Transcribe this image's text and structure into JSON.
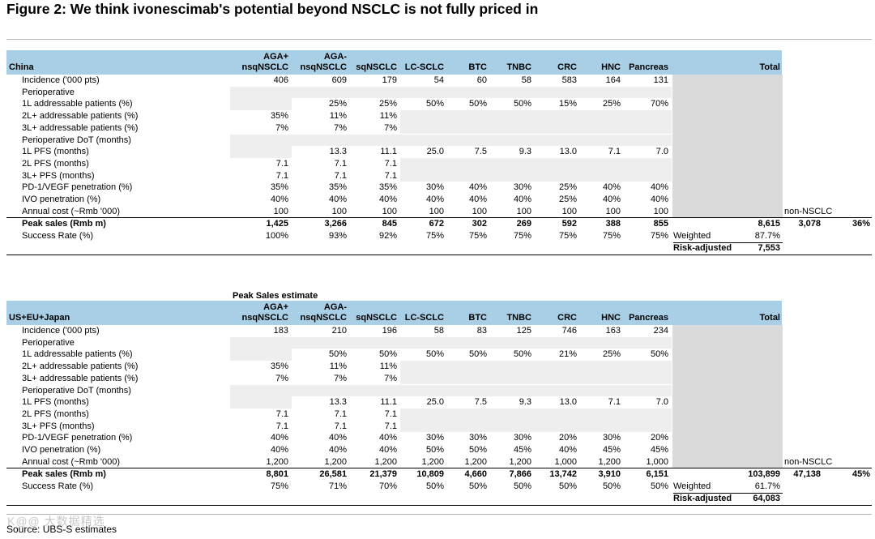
{
  "title": "Figure 2: We think ivonescimab's potential beyond NSCLC is not fully priced in",
  "columns": [
    "AGA+\nnsqNSCLC",
    "AGA-\nnsqNSCLC",
    "sqNSCLC",
    "LC-SCLC",
    "BTC",
    "TNBC",
    "CRC",
    "HNC",
    "Pancreas"
  ],
  "total_label": "Total",
  "peak_sales_estimate_label": "Peak Sales estimate",
  "sections": [
    {
      "region": "China",
      "rows": [
        {
          "label": "Incidence ('000 pts)",
          "values": [
            "406",
            "609",
            "179",
            "54",
            "60",
            "58",
            "583",
            "164",
            "131"
          ]
        },
        {
          "label": "Perioperative",
          "values": [
            "",
            "",
            "",
            "",
            "",
            "",
            "",
            "",
            ""
          ]
        },
        {
          "label": "1L addressable patients (%)",
          "values": [
            "",
            "25%",
            "25%",
            "50%",
            "50%",
            "50%",
            "15%",
            "25%",
            "70%"
          ]
        },
        {
          "label": "2L+ addressable patients (%)",
          "values": [
            "35%",
            "11%",
            "11%",
            "",
            "",
            "",
            "",
            "",
            ""
          ]
        },
        {
          "label": "3L+ addressable patients (%)",
          "values": [
            "7%",
            "7%",
            "7%",
            "",
            "",
            "",
            "",
            "",
            ""
          ]
        },
        {
          "label": "Perioperative DoT (months)",
          "values": [
            "",
            "",
            "",
            "",
            "",
            "",
            "",
            "",
            ""
          ]
        },
        {
          "label": "1L PFS (months)",
          "values": [
            "",
            "13.3",
            "11.1",
            "25.0",
            "7.5",
            "9.3",
            "13.0",
            "7.1",
            "7.0"
          ]
        },
        {
          "label": "2L PFS (months)",
          "values": [
            "7.1",
            "7.1",
            "7.1",
            "",
            "",
            "",
            "",
            "",
            ""
          ]
        },
        {
          "label": "3L+ PFS (months)",
          "values": [
            "7.1",
            "7.1",
            "7.1",
            "",
            "",
            "",
            "",
            "",
            ""
          ]
        },
        {
          "label": "PD-1/VEGF penetration (%)",
          "values": [
            "35%",
            "35%",
            "35%",
            "30%",
            "40%",
            "30%",
            "25%",
            "40%",
            "40%"
          ]
        },
        {
          "label": "IVO penetration (%)",
          "values": [
            "40%",
            "40%",
            "40%",
            "40%",
            "40%",
            "40%",
            "25%",
            "40%",
            "40%"
          ]
        },
        {
          "label": "Annual cost (~Rmb '000)",
          "values": [
            "100",
            "100",
            "100",
            "100",
            "100",
            "100",
            "100",
            "100",
            "100"
          ],
          "extra_label": "non-NSCLC"
        }
      ],
      "peak": {
        "label": "Peak sales (Rmb m)",
        "values": [
          "1,425",
          "3,266",
          "845",
          "672",
          "302",
          "269",
          "592",
          "388",
          "855"
        ],
        "total": "8,615",
        "non_nsclc": "3,078",
        "pct": "36%"
      },
      "success": {
        "label": "Success Rate (%)",
        "values": [
          "100%",
          "93%",
          "92%",
          "75%",
          "75%",
          "75%",
          "75%",
          "75%",
          "75%"
        ],
        "weighted_label": "Weighted",
        "weighted": "87.7%"
      },
      "risk": {
        "label": "Risk-adjusted",
        "value": "7,553"
      }
    },
    {
      "region": "US+EU+Japan",
      "rows": [
        {
          "label": "Incidence ('000 pts)",
          "values": [
            "183",
            "210",
            "196",
            "58",
            "83",
            "125",
            "746",
            "163",
            "234"
          ]
        },
        {
          "label": "Perioperative",
          "values": [
            "",
            "",
            "",
            "",
            "",
            "",
            "",
            "",
            ""
          ]
        },
        {
          "label": "1L addressable patients (%)",
          "values": [
            "",
            "50%",
            "50%",
            "50%",
            "50%",
            "50%",
            "21%",
            "25%",
            "50%"
          ]
        },
        {
          "label": "2L+ addressable patients (%)",
          "values": [
            "35%",
            "11%",
            "11%",
            "",
            "",
            "",
            "",
            "",
            ""
          ]
        },
        {
          "label": "3L+ addressable patients (%)",
          "values": [
            "7%",
            "7%",
            "7%",
            "",
            "",
            "",
            "",
            "",
            ""
          ]
        },
        {
          "label": "Perioperative DoT (months)",
          "values": [
            "",
            "",
            "",
            "",
            "",
            "",
            "",
            "",
            ""
          ]
        },
        {
          "label": "1L PFS (months)",
          "values": [
            "",
            "13.3",
            "11.1",
            "25.0",
            "7.5",
            "9.3",
            "13.0",
            "7.1",
            "7.0"
          ]
        },
        {
          "label": "2L PFS (months)",
          "values": [
            "7.1",
            "7.1",
            "7.1",
            "",
            "",
            "",
            "",
            "",
            ""
          ]
        },
        {
          "label": "3L+ PFS (months)",
          "values": [
            "7.1",
            "7.1",
            "7.1",
            "",
            "",
            "",
            "",
            "",
            ""
          ]
        },
        {
          "label": "PD-1/VEGF penetration (%)",
          "values": [
            "40%",
            "40%",
            "40%",
            "30%",
            "30%",
            "30%",
            "20%",
            "30%",
            "20%"
          ]
        },
        {
          "label": "IVO penetration (%)",
          "values": [
            "40%",
            "40%",
            "40%",
            "50%",
            "50%",
            "45%",
            "40%",
            "45%",
            "45%"
          ]
        },
        {
          "label": "Annual cost (~Rmb '000)",
          "values": [
            "1,200",
            "1,200",
            "1,200",
            "1,200",
            "1,200",
            "1,200",
            "1,000",
            "1,200",
            "1,000"
          ],
          "extra_label": "non-NSCLC"
        }
      ],
      "peak": {
        "label": "Peak sales (Rmb m)",
        "values": [
          "8,801",
          "26,581",
          "21,379",
          "10,809",
          "4,660",
          "7,866",
          "13,742",
          "3,910",
          "6,151"
        ],
        "total": "103,899",
        "non_nsclc": "47,138",
        "pct": "45%"
      },
      "success": {
        "label": "Success Rate (%)",
        "values": [
          "75%",
          "71%",
          "70%",
          "50%",
          "50%",
          "50%",
          "50%",
          "50%",
          "50%"
        ],
        "weighted_label": "Weighted",
        "weighted": "61.7%"
      },
      "risk": {
        "label": "Risk-adjusted",
        "value": "64,083"
      }
    }
  ],
  "source": "Source: UBS-S estimates",
  "watermark": "K@@ 大数据精选"
}
